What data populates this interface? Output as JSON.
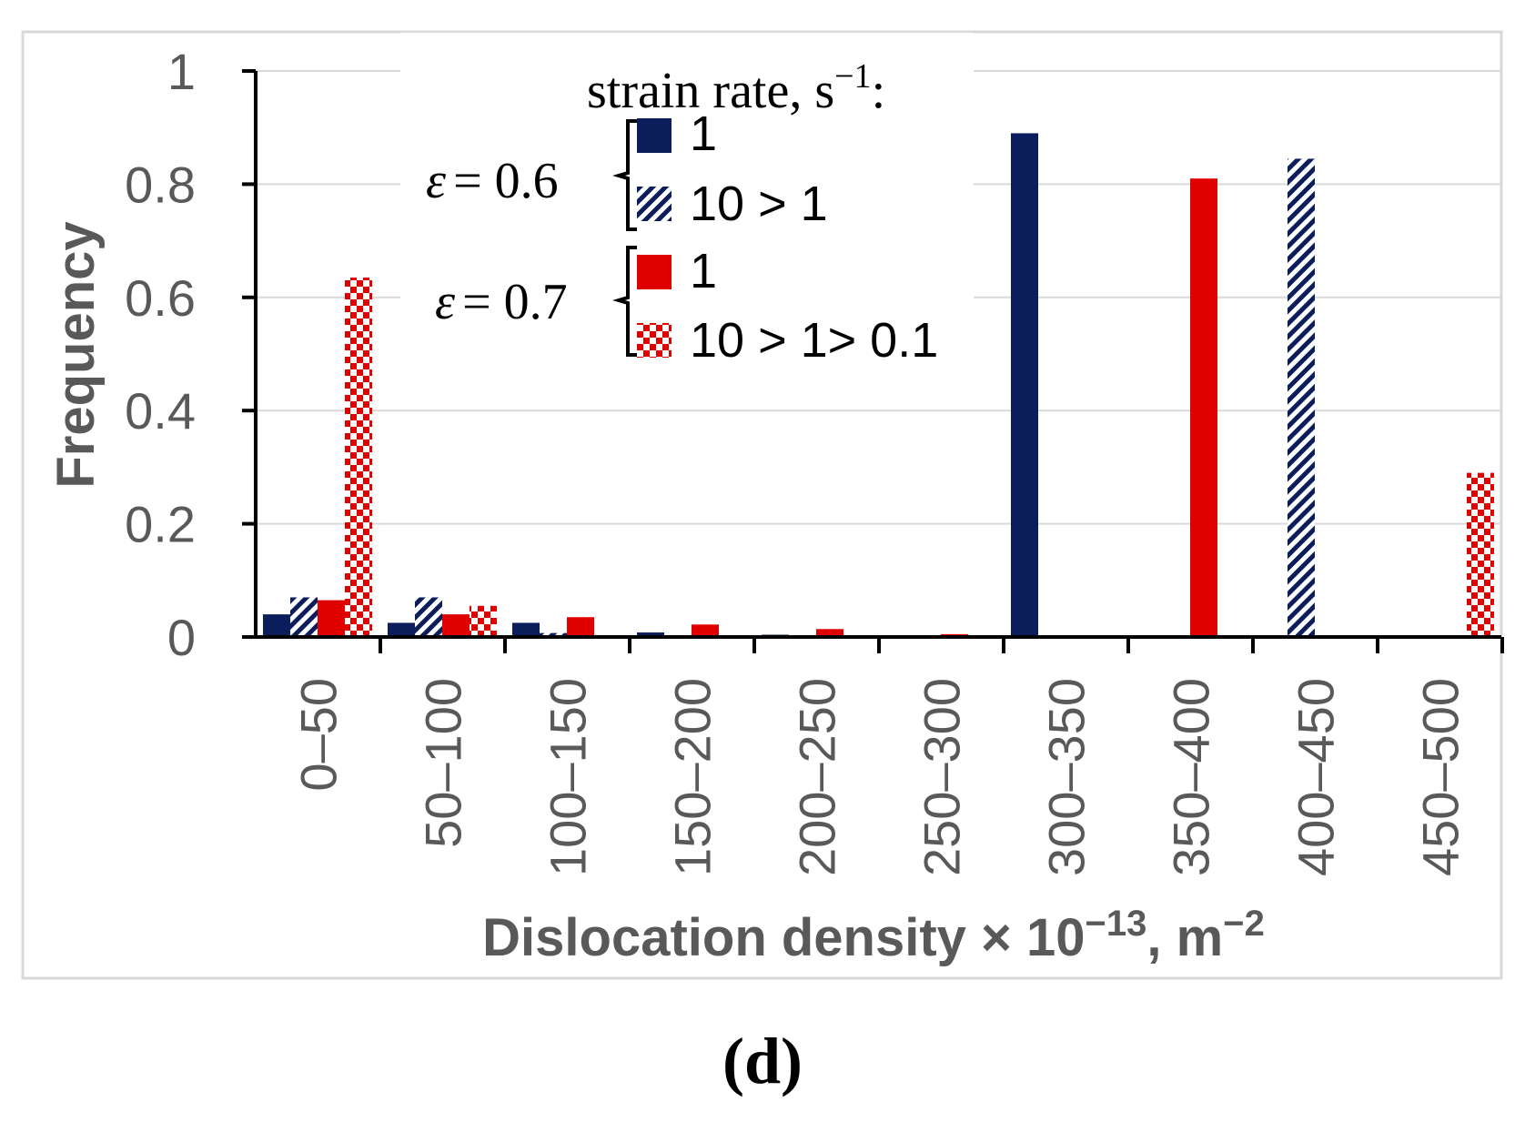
{
  "chart_data": {
    "type": "bar",
    "title": "",
    "xlabel": "Dislocation density × 10−13, m−2",
    "xlabel_main": "Dislocation density × 10",
    "xlabel_exp1": "−13",
    "xlabel_mid": ", m",
    "xlabel_exp2": "−2",
    "ylabel": "Frequency",
    "ylim": [
      0,
      1
    ],
    "yticks": [
      "0",
      "0.2",
      "0.4",
      "0.6",
      "0.8",
      "1"
    ],
    "ytick_values": [
      0,
      0.2,
      0.4,
      0.6,
      0.8,
      1
    ],
    "grid": true,
    "categories": [
      "0–50",
      "50–100",
      "100–150",
      "150–200",
      "200–250",
      "250–300",
      "300–350",
      "350–400",
      "400–450",
      "450–500"
    ],
    "series": [
      {
        "name": "1",
        "strain": "ε = 0.6",
        "color": "#0c1d5c",
        "pattern": "solid",
        "values": [
          0.04,
          0.025,
          0.025,
          0.008,
          0.004,
          0,
          0.89,
          0,
          0,
          0
        ]
      },
      {
        "name": "10 > 1",
        "strain": "ε = 0.6",
        "color": "#0c1d5c",
        "pattern": "hatch",
        "values": [
          0.07,
          0.07,
          0.007,
          0,
          0,
          0,
          0,
          0,
          0.845,
          0
        ]
      },
      {
        "name": "1",
        "strain": "ε = 0.7",
        "color": "#e00000",
        "pattern": "solid",
        "values": [
          0.065,
          0.04,
          0.035,
          0.022,
          0.014,
          0.005,
          0,
          0.81,
          0,
          0
        ]
      },
      {
        "name": "10 > 1> 0.1",
        "strain": "ε = 0.7",
        "color": "#e00000",
        "pattern": "checker",
        "values": [
          0.635,
          0.055,
          0,
          0,
          0,
          0,
          0,
          0,
          0,
          0.29
        ]
      }
    ],
    "legend": {
      "title_main": "strain rate, s",
      "title_exp": "−1",
      "title_end": ":",
      "group1": {
        "eps": "ε",
        "value": "= 0.6"
      },
      "group2": {
        "eps": "ε",
        "value": "= 0.7"
      },
      "placement": "top-center"
    },
    "panel_label": "(d)"
  },
  "colors": {
    "navy": "#0c1d5c",
    "red": "#e00000",
    "gridline": "#d9d9d9",
    "axis_text": "#595959",
    "frame": "#d9d9d9"
  }
}
